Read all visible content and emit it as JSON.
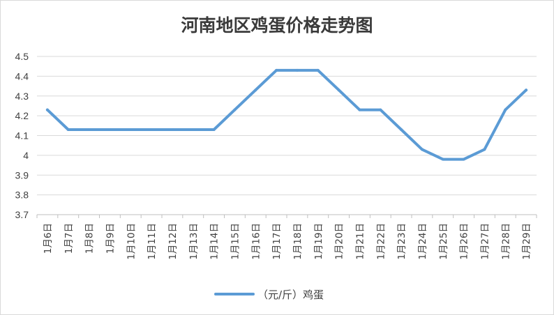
{
  "chart_data": {
    "type": "line",
    "title": "河南地区鸡蛋价格走势图",
    "categories": [
      "1月6日",
      "1月7日",
      "1月8日",
      "1月9日",
      "1月10日",
      "1月11日",
      "1月12日",
      "1月13日",
      "1月14日",
      "1月15日",
      "1月16日",
      "1月17日",
      "1月18日",
      "1月19日",
      "1月20日",
      "1月21日",
      "1月22日",
      "1月23日",
      "1月24日",
      "1月25日",
      "1月26日",
      "1月27日",
      "1月28日",
      "1月29日"
    ],
    "series": [
      {
        "name": "（元/斤）鸡蛋",
        "color": "#5b9bd5",
        "values": [
          4.23,
          4.13,
          4.13,
          4.13,
          4.13,
          4.13,
          4.13,
          4.13,
          4.13,
          4.23,
          4.33,
          4.43,
          4.43,
          4.43,
          4.33,
          4.23,
          4.23,
          4.13,
          4.03,
          3.98,
          3.98,
          4.03,
          4.23,
          4.33
        ]
      }
    ],
    "ylim": [
      3.7,
      4.5
    ],
    "yticks": [
      "3.7",
      "3.8",
      "3.9",
      "4",
      "4.1",
      "4.2",
      "4.3",
      "4.4",
      "4.5"
    ],
    "xlabel": "",
    "ylabel": "",
    "grid": true,
    "legend": "bottom"
  }
}
